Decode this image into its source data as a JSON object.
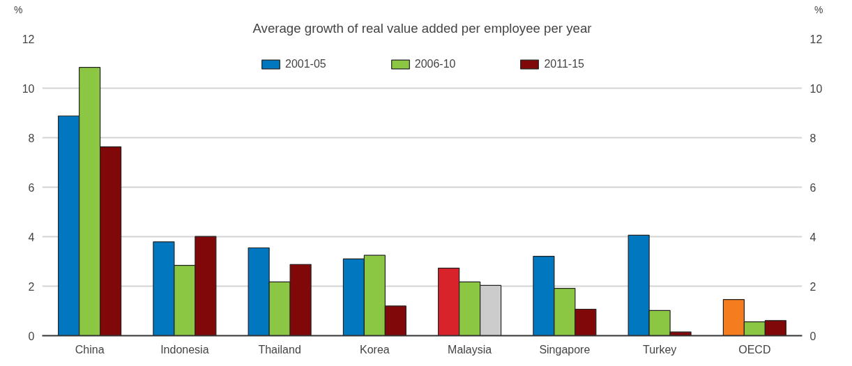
{
  "chart_data": {
    "type": "bar",
    "title": "Average growth of real value added per employee per year",
    "ylabel": "%",
    "y2label": "%",
    "categories": [
      "China",
      "Indonesia",
      "Thailand",
      "Korea",
      "Malaysia",
      "Singapore",
      "Turkey",
      "OECD"
    ],
    "series": [
      {
        "name": "2001-05",
        "color": "#0077be",
        "colors": [
          "#0077be",
          "#0077be",
          "#0077be",
          "#0077be",
          "#d9232a",
          "#0077be",
          "#0077be",
          "#f47d20"
        ],
        "values": [
          8.88,
          3.79,
          3.55,
          3.1,
          2.73,
          3.21,
          4.06,
          1.46
        ]
      },
      {
        "name": "2006-10",
        "color": "#8cc744",
        "values": [
          10.84,
          2.84,
          2.17,
          3.25,
          2.17,
          1.91,
          1.02,
          0.56
        ]
      },
      {
        "name": "2011-15",
        "color": "#800808",
        "colors": [
          "#800808",
          "#800808",
          "#800808",
          "#800808",
          "#cccccc",
          "#800808",
          "#800808",
          "#800808"
        ],
        "values": [
          7.63,
          4.01,
          2.88,
          1.2,
          2.03,
          1.07,
          0.15,
          0.61
        ]
      }
    ],
    "ylim": [
      0,
      12
    ],
    "yticks": [
      0,
      2,
      4,
      6,
      8,
      10,
      12
    ],
    "y2lim": [
      0,
      12
    ],
    "y2ticks": [
      0,
      2,
      4,
      6,
      8,
      10,
      12
    ],
    "grid": "y",
    "legend": "top"
  }
}
